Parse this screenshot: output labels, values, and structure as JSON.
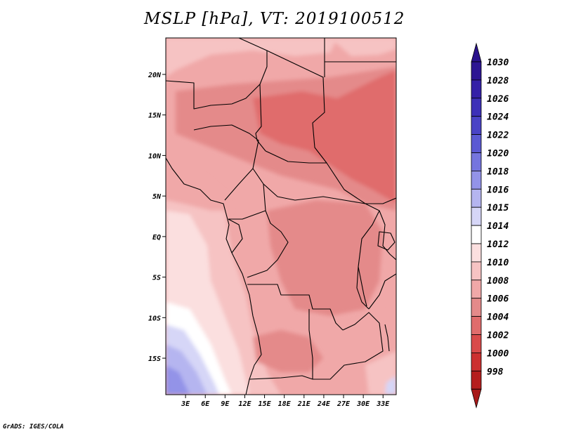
{
  "title": "MSLP [hPa], VT: 2019100512",
  "credit": "GrADS: IGES/COLA",
  "map": {
    "lon_range": [
      0,
      35
    ],
    "lat_range": [
      -19.5,
      24.5
    ],
    "lon_ticks": [
      {
        "value": 3,
        "label": "3E"
      },
      {
        "value": 6,
        "label": "6E"
      },
      {
        "value": 9,
        "label": "9E"
      },
      {
        "value": 12,
        "label": "12E"
      },
      {
        "value": 15,
        "label": "15E"
      },
      {
        "value": 18,
        "label": "18E"
      },
      {
        "value": 21,
        "label": "21E"
      },
      {
        "value": 24,
        "label": "24E"
      },
      {
        "value": 27,
        "label": "27E"
      },
      {
        "value": 30,
        "label": "30E"
      },
      {
        "value": 33,
        "label": "33E"
      }
    ],
    "lat_ticks": [
      {
        "value": 20,
        "label": "20N"
      },
      {
        "value": 15,
        "label": "15N"
      },
      {
        "value": 10,
        "label": "10N"
      },
      {
        "value": 5,
        "label": "5N"
      },
      {
        "value": 0,
        "label": "EQ"
      },
      {
        "value": -5,
        "label": "5S"
      },
      {
        "value": -10,
        "label": "10S"
      },
      {
        "value": -15,
        "label": "15S"
      }
    ]
  },
  "colorbar": {
    "levels": [
      {
        "label": "1030",
        "color": "#2d1593"
      },
      {
        "label": "1028",
        "color": "#3420a7"
      },
      {
        "label": "1026",
        "color": "#3d30b8"
      },
      {
        "label": "1024",
        "color": "#4a43c6"
      },
      {
        "label": "1022",
        "color": "#5b59d3"
      },
      {
        "label": "1020",
        "color": "#7575de"
      },
      {
        "label": "1018",
        "color": "#9393e8"
      },
      {
        "label": "1016",
        "color": "#b5b5f0"
      },
      {
        "label": "1015",
        "color": "#d6d6f7"
      },
      {
        "label": "1014",
        "color": "#ffffff"
      },
      {
        "label": "1012",
        "color": "#fbdfdf"
      },
      {
        "label": "1010",
        "color": "#f6c3c3"
      },
      {
        "label": "1008",
        "color": "#f0a8a8"
      },
      {
        "label": "1006",
        "color": "#e48a8a"
      },
      {
        "label": "1004",
        "color": "#e06c6c"
      },
      {
        "label": "1002",
        "color": "#d94a4a"
      },
      {
        "label": "1000",
        "color": "#cc3030"
      },
      {
        "label": "998",
        "color": "#b51e1e"
      }
    ],
    "top_arrow_color": "#2a128c",
    "bottom_arrow_color": "#a81a1a"
  }
}
